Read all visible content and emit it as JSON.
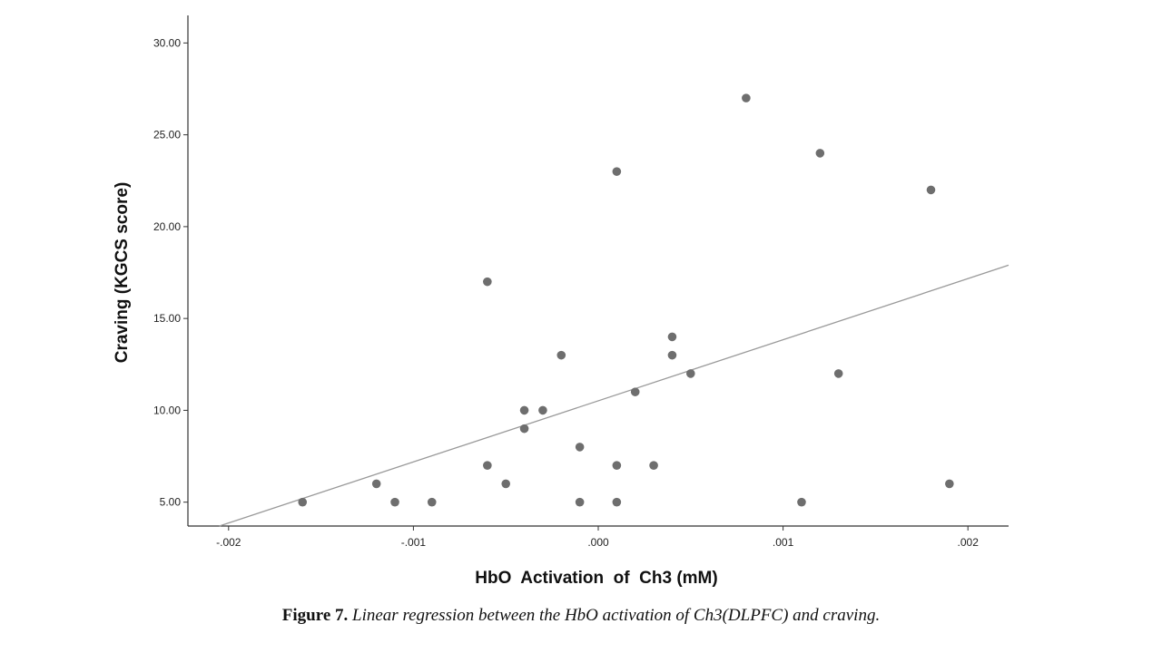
{
  "chart_data": {
    "type": "scatter",
    "xlabel": "HbO  Activation  of  Ch3 (mM)",
    "ylabel": "Craving (KGCS score)",
    "xlim": [
      -0.00222,
      0.00222
    ],
    "ylim": [
      3.7,
      31.5
    ],
    "x_ticks": [
      -0.002,
      -0.001,
      0.0,
      0.001,
      0.002
    ],
    "x_tick_labels": [
      "-.002",
      "-.001",
      ".000",
      ".001",
      ".002"
    ],
    "y_ticks": [
      5,
      10,
      15,
      20,
      25,
      30
    ],
    "y_tick_labels": [
      "5.00",
      "10.00",
      "15.00",
      "20.00",
      "25.00",
      "30.00"
    ],
    "grid": false,
    "marker_color": "#6e6e6e",
    "line_color": "#999999",
    "points": [
      {
        "x": -0.0016,
        "y": 5
      },
      {
        "x": -0.0012,
        "y": 6
      },
      {
        "x": -0.0011,
        "y": 5
      },
      {
        "x": -0.0009,
        "y": 5
      },
      {
        "x": -0.0006,
        "y": 17
      },
      {
        "x": -0.0006,
        "y": 7
      },
      {
        "x": -0.0005,
        "y": 6
      },
      {
        "x": -0.0004,
        "y": 10
      },
      {
        "x": -0.0004,
        "y": 9
      },
      {
        "x": -0.0003,
        "y": 10
      },
      {
        "x": -0.0002,
        "y": 13
      },
      {
        "x": -0.0001,
        "y": 8
      },
      {
        "x": -0.0001,
        "y": 5
      },
      {
        "x": 0.0001,
        "y": 23
      },
      {
        "x": 0.0001,
        "y": 7
      },
      {
        "x": 0.0001,
        "y": 5
      },
      {
        "x": 0.0002,
        "y": 11
      },
      {
        "x": 0.0003,
        "y": 7
      },
      {
        "x": 0.0004,
        "y": 14
      },
      {
        "x": 0.0004,
        "y": 13
      },
      {
        "x": 0.0005,
        "y": 12
      },
      {
        "x": 0.0008,
        "y": 27
      },
      {
        "x": 0.0011,
        "y": 5
      },
      {
        "x": 0.0012,
        "y": 24
      },
      {
        "x": 0.0013,
        "y": 12
      },
      {
        "x": 0.0018,
        "y": 22
      },
      {
        "x": 0.0019,
        "y": 6
      }
    ],
    "regression_line": {
      "x": [
        -0.00205,
        0.00222
      ],
      "y": [
        3.7,
        17.9
      ]
    }
  },
  "caption": {
    "lead": "Figure 7.",
    "text": " Linear regression between the HbO activation of Ch3(DLPFC) and craving."
  }
}
